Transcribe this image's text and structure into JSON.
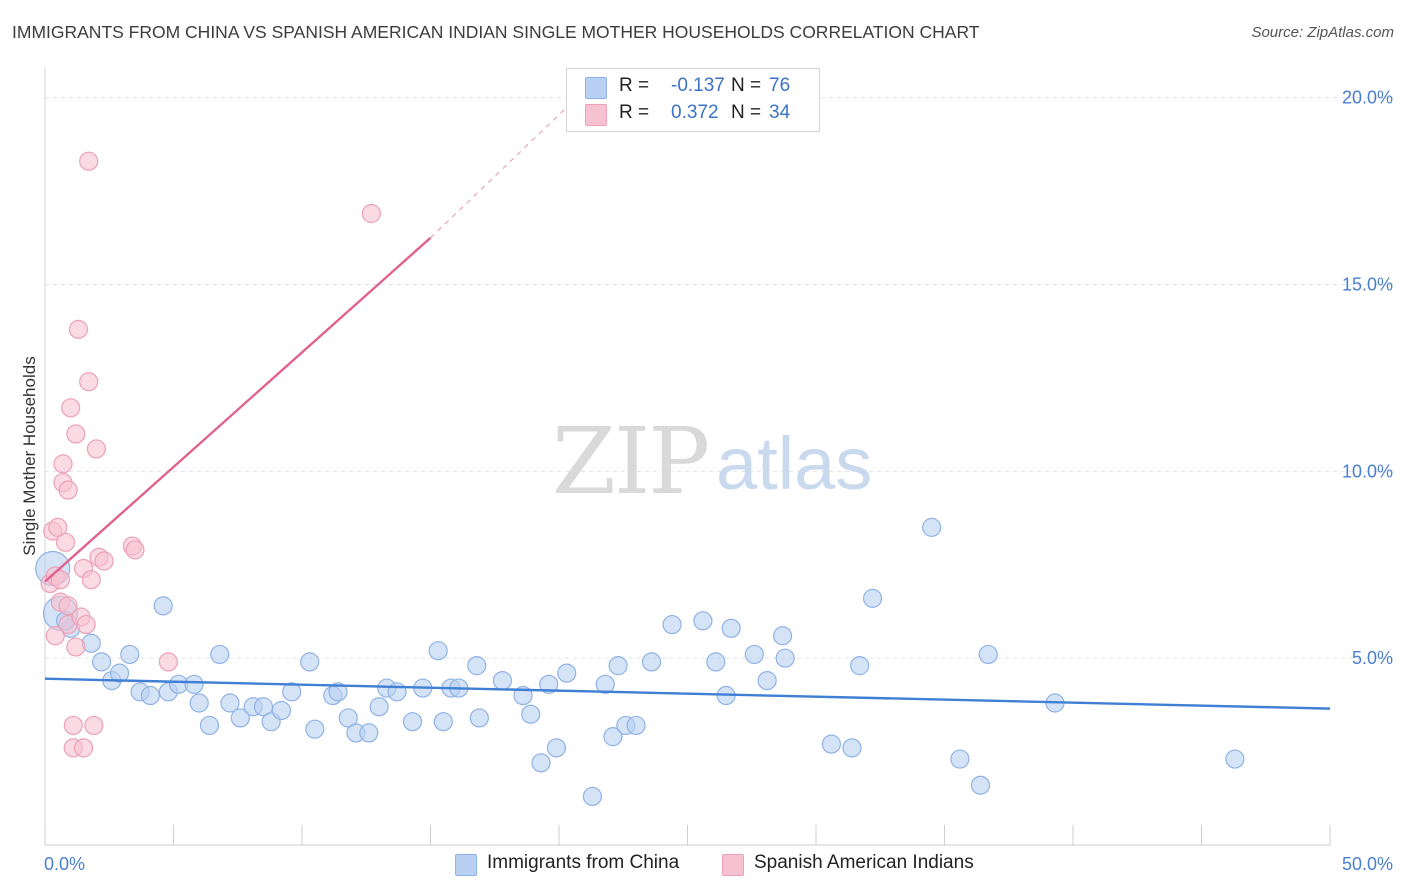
{
  "header": {
    "title": "IMMIGRANTS FROM CHINA VS SPANISH AMERICAN INDIAN SINGLE MOTHER HOUSEHOLDS CORRELATION CHART",
    "source": "Source: ZipAtlas.com"
  },
  "watermark": {
    "zip": "ZIP",
    "atlas": "atlas"
  },
  "legend": {
    "rows": [
      {
        "r_label": "R =",
        "r_value": "-0.137",
        "n_label": "N =",
        "n_value": "76"
      },
      {
        "r_label": "R =",
        "r_value": "0.372",
        "n_label": "N =",
        "n_value": "34"
      }
    ]
  },
  "colors": {
    "blue_fill": "#b9d0f2",
    "blue_stroke": "#8fb3e6",
    "blue_line": "#3f7fd4",
    "pink_fill": "#f6c2d1",
    "pink_stroke": "#eda0b7",
    "pink_line": "#e0628c",
    "grid": "#dde3ee",
    "axis_tick": "#4a7fd0"
  },
  "chart_data": {
    "type": "scatter",
    "title": "IMMIGRANTS FROM CHINA VS SPANISH AMERICAN INDIAN SINGLE MOTHER HOUSEHOLDS CORRELATION CHART",
    "xlabel": "",
    "ylabel": "Single Mother Households",
    "xlim": [
      0,
      50
    ],
    "ylim": [
      0,
      20.5
    ],
    "x_tick_labels": [
      "0.0%",
      "50.0%"
    ],
    "y_ticks": [
      5,
      10,
      15,
      20
    ],
    "y_tick_labels": [
      "5.0%",
      "10.0%",
      "15.0%",
      "20.0%"
    ],
    "grid": true,
    "legend_position": "bottom",
    "series": [
      {
        "name": "Immigrants from China",
        "color": "#b9d0f2",
        "points": [
          [
            0.3,
            7.4
          ],
          [
            0.6,
            6.2
          ],
          [
            1.0,
            5.8
          ],
          [
            1.8,
            5.4
          ],
          [
            2.2,
            4.9
          ],
          [
            2.6,
            4.4
          ],
          [
            2.9,
            4.6
          ],
          [
            3.3,
            5.1
          ],
          [
            3.7,
            4.1
          ],
          [
            4.1,
            4.0
          ],
          [
            4.6,
            6.4
          ],
          [
            4.8,
            4.1
          ],
          [
            5.2,
            4.3
          ],
          [
            5.8,
            4.3
          ],
          [
            6.0,
            3.8
          ],
          [
            6.4,
            3.2
          ],
          [
            6.8,
            5.1
          ],
          [
            7.2,
            3.8
          ],
          [
            7.6,
            3.4
          ],
          [
            8.1,
            3.7
          ],
          [
            8.5,
            3.7
          ],
          [
            8.8,
            3.3
          ],
          [
            9.2,
            3.6
          ],
          [
            9.6,
            4.1
          ],
          [
            10.3,
            4.9
          ],
          [
            10.5,
            3.1
          ],
          [
            11.2,
            4.0
          ],
          [
            11.4,
            4.1
          ],
          [
            11.8,
            3.4
          ],
          [
            12.1,
            3.0
          ],
          [
            12.6,
            3.0
          ],
          [
            13.0,
            3.7
          ],
          [
            13.3,
            4.2
          ],
          [
            13.7,
            4.1
          ],
          [
            14.3,
            3.3
          ],
          [
            14.7,
            4.2
          ],
          [
            15.3,
            5.2
          ],
          [
            15.5,
            3.3
          ],
          [
            15.8,
            4.2
          ],
          [
            16.1,
            4.2
          ],
          [
            16.8,
            4.8
          ],
          [
            16.9,
            3.4
          ],
          [
            17.8,
            4.4
          ],
          [
            18.6,
            4.0
          ],
          [
            18.9,
            3.5
          ],
          [
            19.3,
            2.2
          ],
          [
            19.6,
            4.3
          ],
          [
            19.9,
            2.6
          ],
          [
            20.3,
            4.6
          ],
          [
            21.3,
            1.3
          ],
          [
            21.8,
            4.3
          ],
          [
            22.1,
            2.9
          ],
          [
            22.3,
            4.8
          ],
          [
            22.6,
            3.2
          ],
          [
            23.0,
            3.2
          ],
          [
            23.6,
            4.9
          ],
          [
            24.4,
            5.9
          ],
          [
            25.6,
            6.0
          ],
          [
            26.1,
            4.9
          ],
          [
            26.5,
            4.0
          ],
          [
            26.7,
            5.8
          ],
          [
            27.6,
            5.1
          ],
          [
            28.1,
            4.4
          ],
          [
            28.7,
            5.6
          ],
          [
            28.8,
            5.0
          ],
          [
            30.6,
            2.7
          ],
          [
            31.4,
            2.6
          ],
          [
            31.7,
            4.8
          ],
          [
            32.2,
            6.6
          ],
          [
            34.5,
            8.5
          ],
          [
            35.6,
            2.3
          ],
          [
            36.4,
            1.6
          ],
          [
            36.7,
            5.1
          ],
          [
            39.3,
            3.8
          ],
          [
            46.3,
            2.3
          ],
          [
            0.8,
            6.0
          ]
        ]
      },
      {
        "name": "Spanish American Indians",
        "color": "#f6c2d1",
        "points": [
          [
            0.2,
            7.0
          ],
          [
            0.3,
            8.4
          ],
          [
            0.4,
            5.6
          ],
          [
            0.4,
            7.2
          ],
          [
            0.5,
            8.5
          ],
          [
            0.6,
            7.1
          ],
          [
            0.6,
            6.5
          ],
          [
            0.7,
            9.7
          ],
          [
            0.7,
            10.2
          ],
          [
            0.8,
            8.1
          ],
          [
            0.9,
            9.5
          ],
          [
            0.9,
            6.4
          ],
          [
            0.9,
            5.9
          ],
          [
            1.0,
            11.7
          ],
          [
            1.1,
            3.2
          ],
          [
            1.1,
            2.6
          ],
          [
            1.2,
            11.0
          ],
          [
            1.2,
            5.3
          ],
          [
            1.3,
            13.8
          ],
          [
            1.4,
            6.1
          ],
          [
            1.5,
            2.6
          ],
          [
            1.5,
            7.4
          ],
          [
            1.6,
            5.9
          ],
          [
            1.7,
            18.3
          ],
          [
            1.7,
            12.4
          ],
          [
            1.8,
            7.1
          ],
          [
            1.9,
            3.2
          ],
          [
            2.0,
            10.6
          ],
          [
            2.1,
            7.7
          ],
          [
            2.3,
            7.6
          ],
          [
            3.4,
            8.0
          ],
          [
            3.5,
            7.9
          ],
          [
            4.8,
            4.9
          ],
          [
            12.7,
            16.9
          ]
        ]
      }
    ],
    "trend_lines": [
      {
        "series": "Immigrants from China",
        "x": [
          0,
          50
        ],
        "y": [
          4.45,
          3.65
        ]
      },
      {
        "series": "Spanish American Indians",
        "x": [
          0,
          15.0
        ],
        "y": [
          7.05,
          16.25
        ],
        "dashed_extension_to": [
          21.0,
          20.2
        ]
      }
    ]
  }
}
